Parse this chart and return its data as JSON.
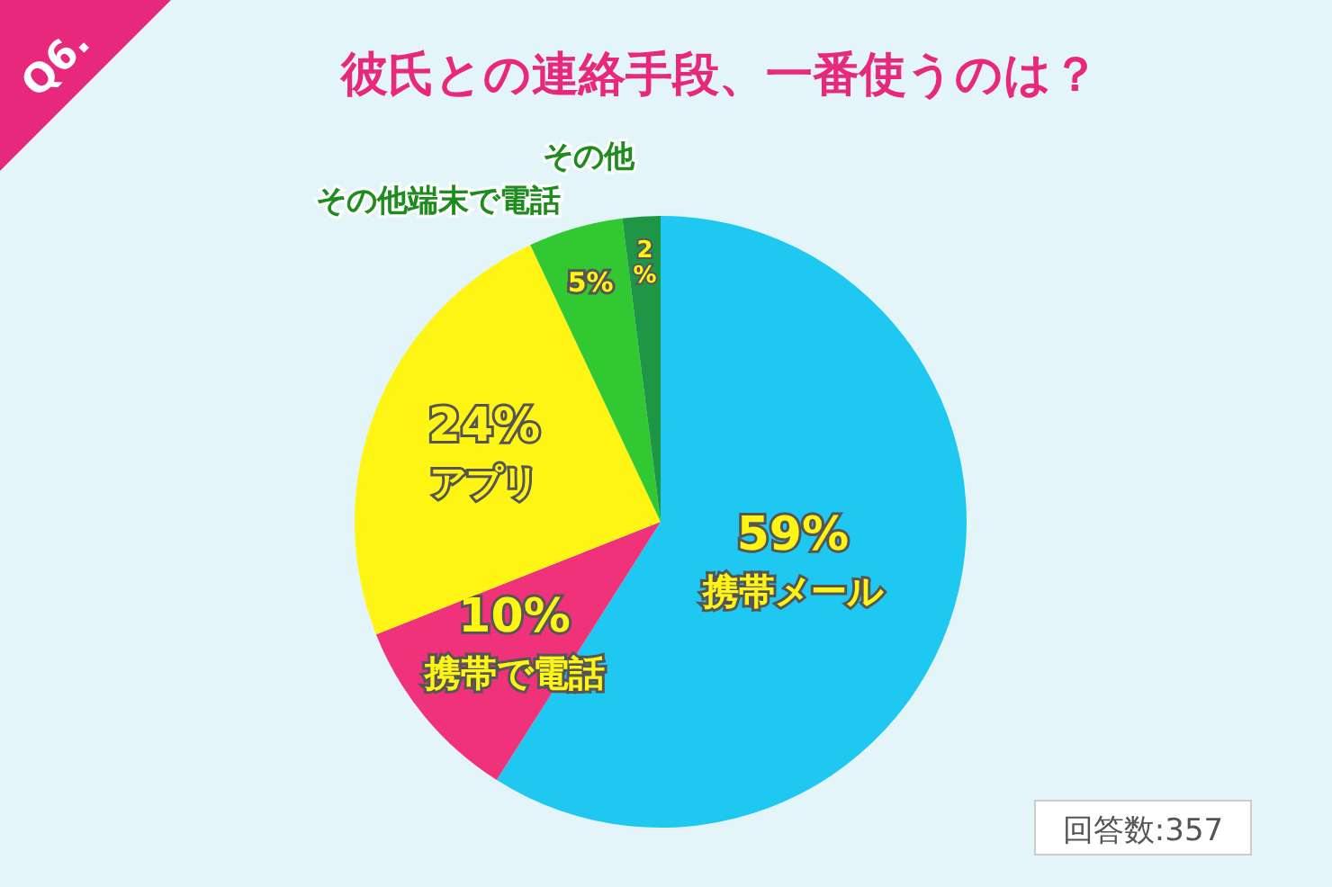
{
  "chart_data": {
    "type": "pie",
    "title": "彼氏との連絡手段、一番使うのは？",
    "categories": [
      "携帯メール",
      "携帯で電話",
      "アプリ",
      "その他端末で電話",
      "その他"
    ],
    "values": [
      59,
      10,
      24,
      5,
      2
    ],
    "colors": [
      "#1ec8f0",
      "#f0327a",
      "#fff514",
      "#32c832",
      "#1e9646"
    ],
    "value_labels": [
      "59%",
      "10%",
      "24%",
      "5%",
      "2%"
    ],
    "annotations": [
      "Q6.",
      "回答数:357"
    ]
  }
}
